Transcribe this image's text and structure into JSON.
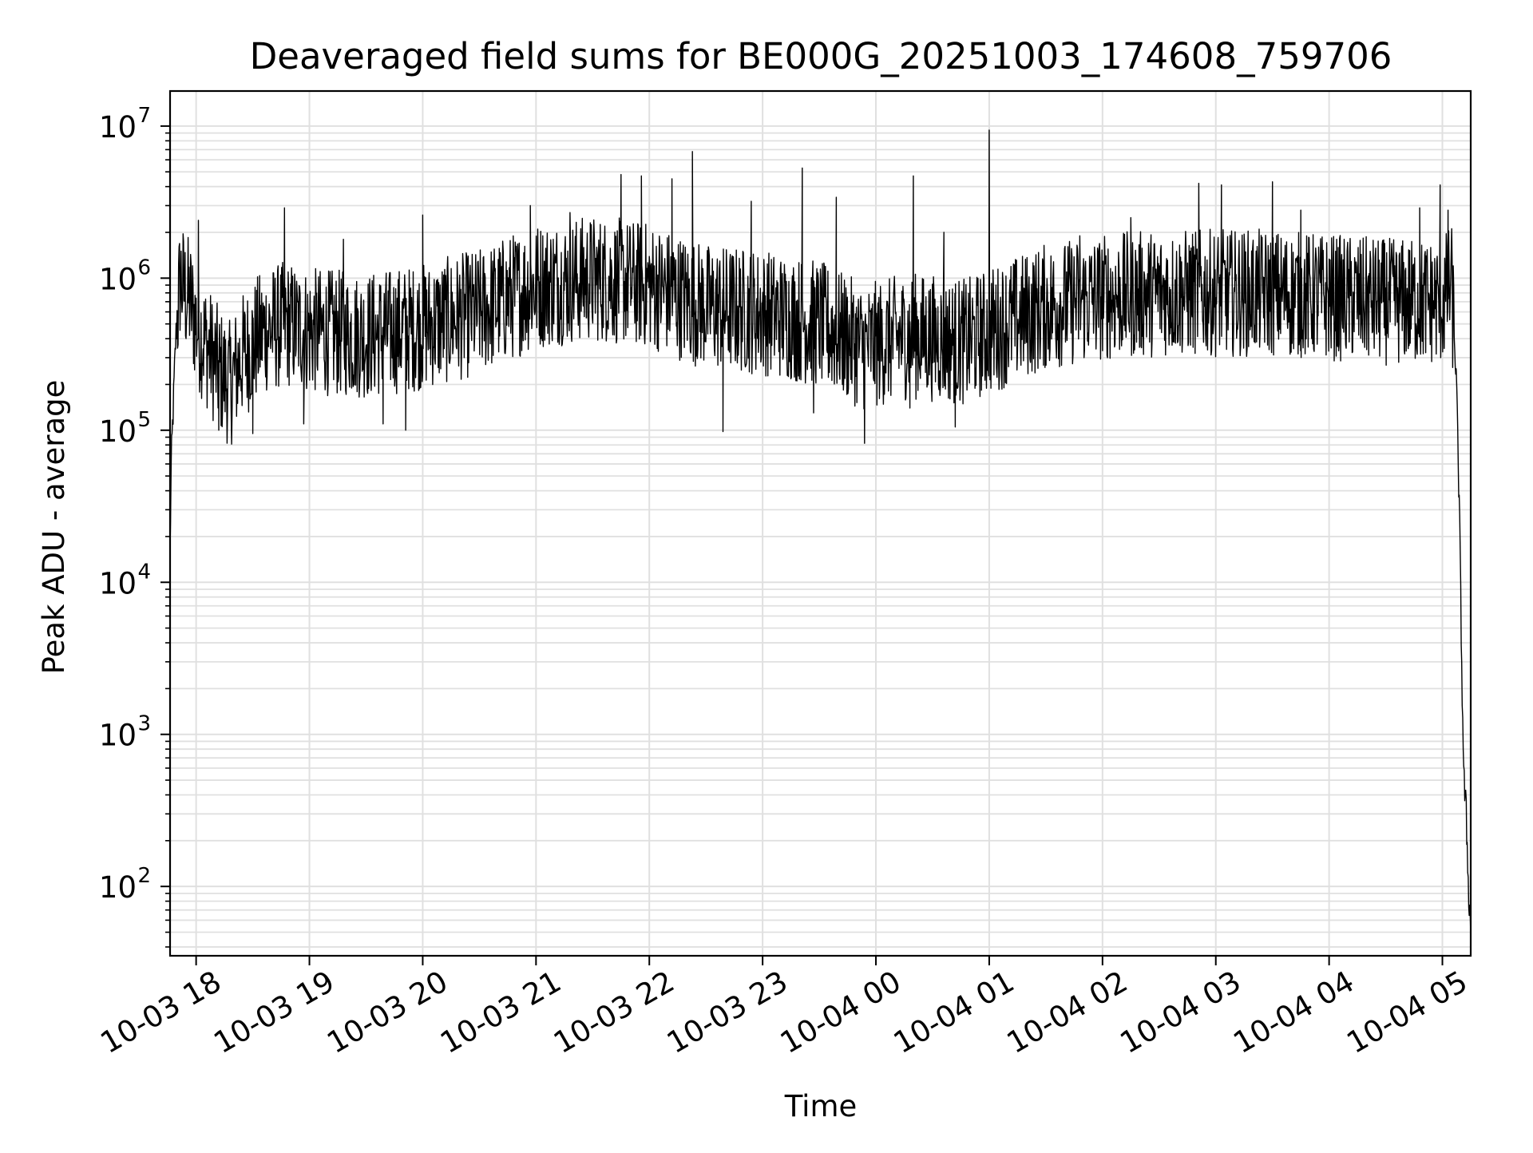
{
  "chart_data": {
    "type": "line",
    "title": "Deaveraged field sums for BE000G_20251003_174608_759706",
    "xlabel": "Time",
    "ylabel": "Peak ADU - average",
    "yscale": "log",
    "ylim": [
      35,
      17000000
    ],
    "xlim_hours": [
      17.77,
      29.25
    ],
    "grid": true,
    "line_color": "#000000",
    "grid_color": "#e0e0e0",
    "x_ticks": [
      {
        "hour": 18,
        "label": "10-03 18"
      },
      {
        "hour": 19,
        "label": "10-03 19"
      },
      {
        "hour": 20,
        "label": "10-03 20"
      },
      {
        "hour": 21,
        "label": "10-03 21"
      },
      {
        "hour": 22,
        "label": "10-03 22"
      },
      {
        "hour": 23,
        "label": "10-03 23"
      },
      {
        "hour": 24,
        "label": "10-04 00"
      },
      {
        "hour": 25,
        "label": "10-04 01"
      },
      {
        "hour": 26,
        "label": "10-04 02"
      },
      {
        "hour": 27,
        "label": "10-04 03"
      },
      {
        "hour": 28,
        "label": "10-04 04"
      },
      {
        "hour": 29,
        "label": "10-04 05"
      }
    ],
    "y_ticks": [
      {
        "exp": 2,
        "base": "10",
        "power": "2"
      },
      {
        "exp": 3,
        "base": "10",
        "power": "3"
      },
      {
        "exp": 4,
        "base": "10",
        "power": "4"
      },
      {
        "exp": 5,
        "base": "10",
        "power": "5"
      },
      {
        "exp": 6,
        "base": "10",
        "power": "6"
      },
      {
        "exp": 7,
        "base": "10",
        "power": "7"
      }
    ],
    "series": [
      {
        "name": "Peak ADU - average",
        "profile_hours": [
          17.77,
          17.78,
          17.82,
          17.86,
          17.9,
          17.95,
          18.0,
          18.1,
          18.2,
          18.3,
          18.4,
          18.6,
          18.8,
          19.0,
          19.5,
          20.0,
          20.5,
          21.0,
          21.5,
          22.0,
          22.5,
          23.0,
          23.5,
          23.9,
          24.3,
          24.8,
          25.0,
          25.5,
          26.0,
          26.5,
          27.0,
          27.5,
          28.0,
          28.5,
          29.0,
          29.08,
          29.12,
          29.15,
          29.17,
          29.19,
          29.21,
          29.23,
          29.25
        ],
        "profile_values": [
          15000,
          60000,
          400000,
          1000000,
          800000,
          700000,
          500000,
          350000,
          250000,
          200000,
          300000,
          450000,
          500000,
          450000,
          420000,
          480000,
          600000,
          900000,
          1000000,
          900000,
          650000,
          600000,
          500000,
          350000,
          420000,
          380000,
          450000,
          650000,
          750000,
          800000,
          800000,
          800000,
          750000,
          700000,
          700000,
          900000,
          250000,
          30000,
          3000,
          500,
          300,
          100,
          50
        ],
        "spikes": [
          {
            "hour": 18.02,
            "value": 2400000
          },
          {
            "hour": 18.78,
            "value": 2900000
          },
          {
            "hour": 20.0,
            "value": 2600000
          },
          {
            "hour": 20.95,
            "value": 3000000
          },
          {
            "hour": 21.3,
            "value": 2700000
          },
          {
            "hour": 21.75,
            "value": 4800000
          },
          {
            "hour": 21.93,
            "value": 4700000
          },
          {
            "hour": 22.2,
            "value": 4500000
          },
          {
            "hour": 22.38,
            "value": 6800000
          },
          {
            "hour": 22.9,
            "value": 3200000
          },
          {
            "hour": 23.35,
            "value": 5300000
          },
          {
            "hour": 23.65,
            "value": 3400000
          },
          {
            "hour": 24.33,
            "value": 4700000
          },
          {
            "hour": 25.0,
            "value": 9400000
          },
          {
            "hour": 26.25,
            "value": 2500000
          },
          {
            "hour": 26.85,
            "value": 4200000
          },
          {
            "hour": 27.05,
            "value": 4100000
          },
          {
            "hour": 27.5,
            "value": 4300000
          },
          {
            "hour": 27.75,
            "value": 2800000
          },
          {
            "hour": 28.8,
            "value": 2900000
          },
          {
            "hour": 28.98,
            "value": 4100000
          },
          {
            "hour": 29.05,
            "value": 2800000
          },
          {
            "hour": 19.3,
            "value": 1800000
          },
          {
            "hour": 24.6,
            "value": 2000000
          },
          {
            "hour": 25.8,
            "value": 1900000
          }
        ],
        "dips": [
          {
            "hour": 18.2,
            "value": 100000
          },
          {
            "hour": 18.5,
            "value": 95000
          },
          {
            "hour": 18.95,
            "value": 110000
          },
          {
            "hour": 19.65,
            "value": 110000
          },
          {
            "hour": 19.85,
            "value": 100000
          },
          {
            "hour": 22.65,
            "value": 98000
          },
          {
            "hour": 23.45,
            "value": 130000
          },
          {
            "hour": 23.9,
            "value": 82000
          },
          {
            "hour": 24.7,
            "value": 105000
          },
          {
            "hour": 24.3,
            "value": 140000
          }
        ]
      }
    ]
  }
}
